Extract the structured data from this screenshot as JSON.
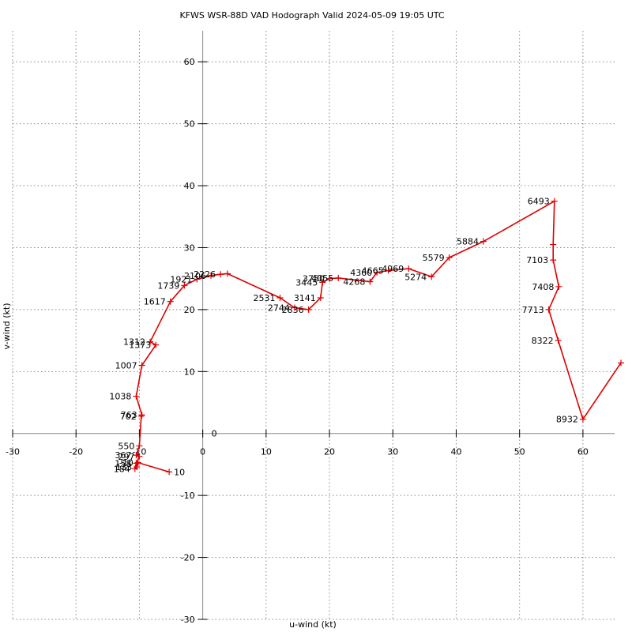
{
  "chart_data": {
    "type": "line",
    "title": "KFWS WSR-88D VAD Hodograph Valid 2024-05-09 19:05 UTC",
    "xlabel": "u-wind (kt)",
    "ylabel": "v-wind (kt)",
    "xlim": [
      -30,
      65
    ],
    "ylim": [
      -30,
      65
    ],
    "xticks": [
      -30,
      -20,
      -10,
      0,
      10,
      20,
      30,
      40,
      50,
      60
    ],
    "yticks": [
      -30,
      -20,
      -10,
      0,
      10,
      20,
      30,
      40,
      50,
      60
    ],
    "grid": true,
    "line_color": "#dd0000",
    "series": [
      {
        "points": [
          {
            "u": -5.3,
            "v": -6.2,
            "label": "10"
          },
          {
            "u": -10.2,
            "v": -4.7,
            "label": "-10"
          },
          {
            "u": -10.4,
            "v": -5.4,
            "label": "133"
          },
          {
            "u": -10.7,
            "v": -5.7,
            "label": "184"
          },
          {
            "u": -10.5,
            "v": -4.8,
            "label": "158"
          },
          {
            "u": -10.0,
            "v": -3.7,
            "label": "297"
          },
          {
            "u": -10.5,
            "v": -3.5,
            "label": "367"
          },
          {
            "u": -10.0,
            "v": -2.0,
            "label": "550"
          },
          {
            "u": -9.7,
            "v": 2.8,
            "label": "702"
          },
          {
            "u": -9.6,
            "v": 3.0,
            "label": "763"
          },
          {
            "u": -10.5,
            "v": 6.0,
            "label": "1038"
          },
          {
            "u": -9.6,
            "v": 11.0,
            "label": "1007"
          },
          {
            "u": -7.4,
            "v": 14.3,
            "label": "1373"
          },
          {
            "u": -8.3,
            "v": 14.8,
            "label": "1312"
          },
          {
            "u": -5.1,
            "v": 21.3,
            "label": "1617"
          },
          {
            "u": -2.9,
            "v": 23.9,
            "label": "1739"
          },
          {
            "u": -0.9,
            "v": 24.9,
            "label": "1921"
          },
          {
            "u": 1.3,
            "v": 25.5,
            "label": "2106"
          },
          {
            "u": 2.8,
            "v": 25.7,
            "label": "2226"
          },
          {
            "u": 3.9,
            "v": 25.8,
            "label": "2226"
          },
          {
            "u": 12.2,
            "v": 21.9,
            "label": "2531"
          },
          {
            "u": 14.5,
            "v": 20.3,
            "label": "2744"
          },
          {
            "u": 16.7,
            "v": 20.0,
            "label": "2836"
          },
          {
            "u": 18.6,
            "v": 21.9,
            "label": "3141"
          },
          {
            "u": 18.9,
            "v": 24.4,
            "label": "3445"
          },
          {
            "u": 20.0,
            "v": 25.0,
            "label": "3750"
          },
          {
            "u": 21.4,
            "v": 25.1,
            "label": "4055"
          },
          {
            "u": 26.4,
            "v": 24.5,
            "label": "4268"
          },
          {
            "u": 27.5,
            "v": 26.0,
            "label": "4360"
          },
          {
            "u": 29.3,
            "v": 26.3,
            "label": "4665"
          },
          {
            "u": 32.5,
            "v": 26.6,
            "label": "4969"
          },
          {
            "u": 36.1,
            "v": 25.3,
            "label": "5274"
          },
          {
            "u": 38.9,
            "v": 28.4,
            "label": "5579"
          },
          {
            "u": 44.3,
            "v": 31.0,
            "label": "5884"
          },
          {
            "u": 55.5,
            "v": 37.5,
            "label": "6493"
          },
          {
            "u": 55.3,
            "v": 30.5,
            "label": "6493"
          },
          {
            "u": 55.3,
            "v": 28.0,
            "label": "7103"
          },
          {
            "u": 56.2,
            "v": 23.7,
            "label": "7408"
          },
          {
            "u": 54.6,
            "v": 20.0,
            "label": "7713"
          },
          {
            "u": 56.1,
            "v": 15.0,
            "label": "8322"
          },
          {
            "u": 60.0,
            "v": 2.3,
            "label": "8932"
          },
          {
            "u": 66.0,
            "v": 11.4,
            "label": ""
          }
        ]
      }
    ],
    "annotations": [
      {
        "text": "10",
        "u": -5.3,
        "v": -6.2,
        "align": "left"
      },
      {
        "text": "-10",
        "u": -10.2,
        "v": -4.7,
        "align": "right"
      },
      {
        "text": "133",
        "u": -10.4,
        "v": -5.4,
        "align": "right"
      },
      {
        "text": "184",
        "u": -10.7,
        "v": -5.7,
        "align": "right"
      },
      {
        "text": "158",
        "u": -10.5,
        "v": -4.8,
        "align": "right"
      },
      {
        "text": "297",
        "u": -10.0,
        "v": -3.7,
        "align": "right"
      },
      {
        "text": "367",
        "u": -10.5,
        "v": -3.5,
        "align": "right"
      },
      {
        "text": "550",
        "u": -10.0,
        "v": -2.0,
        "align": "right"
      },
      {
        "text": "702",
        "u": -9.7,
        "v": 2.8,
        "align": "right"
      },
      {
        "text": "763",
        "u": -9.6,
        "v": 3.0,
        "align": "right"
      },
      {
        "text": "1038",
        "u": -10.5,
        "v": 6.0,
        "align": "right"
      },
      {
        "text": "1007",
        "u": -9.6,
        "v": 11.0,
        "align": "right"
      },
      {
        "text": "1373",
        "u": -7.4,
        "v": 14.3,
        "align": "right"
      },
      {
        "text": "1312",
        "u": -8.3,
        "v": 14.8,
        "align": "right"
      },
      {
        "text": "1617",
        "u": -5.1,
        "v": 21.3,
        "align": "right"
      },
      {
        "text": "1739",
        "u": -2.9,
        "v": 23.9,
        "align": "right"
      },
      {
        "text": "1921",
        "u": -0.9,
        "v": 24.9,
        "align": "right"
      },
      {
        "text": "2106",
        "u": 1.3,
        "v": 25.5,
        "align": "right"
      },
      {
        "text": "2226",
        "u": 2.8,
        "v": 25.7,
        "align": "right"
      },
      {
        "text": "2531",
        "u": 12.2,
        "v": 21.9,
        "align": "right"
      },
      {
        "text": "2744",
        "u": 14.5,
        "v": 20.3,
        "align": "right"
      },
      {
        "text": "2836",
        "u": 16.7,
        "v": 20.0,
        "align": "right"
      },
      {
        "text": "3141",
        "u": 18.6,
        "v": 21.9,
        "align": "right"
      },
      {
        "text": "3445",
        "u": 18.9,
        "v": 24.4,
        "align": "right"
      },
      {
        "text": "3750",
        "u": 20.0,
        "v": 25.0,
        "align": "right"
      },
      {
        "text": "4055",
        "u": 21.4,
        "v": 25.1,
        "align": "right"
      },
      {
        "text": "4268",
        "u": 26.4,
        "v": 24.5,
        "align": "right"
      },
      {
        "text": "4360",
        "u": 27.5,
        "v": 26.0,
        "align": "right"
      },
      {
        "text": "4665",
        "u": 29.3,
        "v": 26.3,
        "align": "right"
      },
      {
        "text": "4969",
        "u": 32.5,
        "v": 26.6,
        "align": "right"
      },
      {
        "text": "5274",
        "u": 36.1,
        "v": 25.3,
        "align": "right"
      },
      {
        "text": "5579",
        "u": 38.9,
        "v": 28.4,
        "align": "right"
      },
      {
        "text": "5884",
        "u": 44.3,
        "v": 31.0,
        "align": "right"
      },
      {
        "text": "6493",
        "u": 55.5,
        "v": 37.5,
        "align": "right"
      },
      {
        "text": "7103",
        "u": 55.3,
        "v": 28.0,
        "align": "right"
      },
      {
        "text": "7408",
        "u": 56.2,
        "v": 23.7,
        "align": "right"
      },
      {
        "text": "7713",
        "u": 54.6,
        "v": 20.0,
        "align": "right"
      },
      {
        "text": "8322",
        "u": 56.1,
        "v": 15.0,
        "align": "right"
      },
      {
        "text": "8932",
        "u": 60.0,
        "v": 2.3,
        "align": "right"
      }
    ]
  }
}
